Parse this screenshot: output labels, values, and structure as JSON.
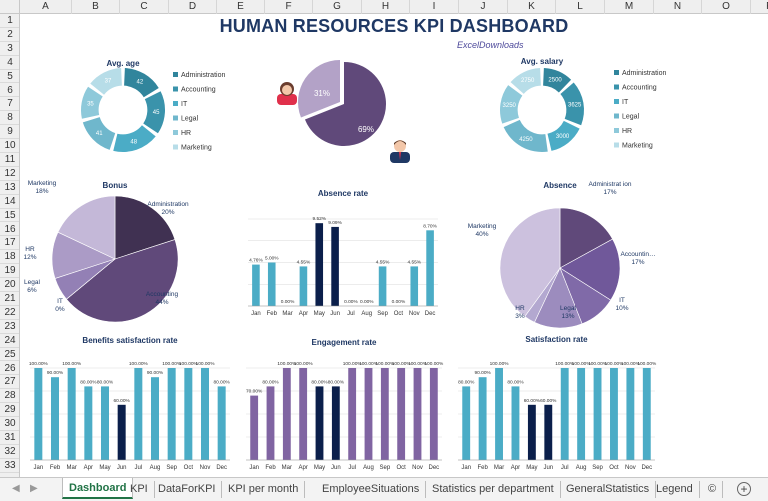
{
  "dashboard": {
    "title": "HUMAN RESOURCES KPI DASHBOARD",
    "subtitle": "ExcelDownloads"
  },
  "columns": [
    "A",
    "B",
    "C",
    "D",
    "E",
    "F",
    "G",
    "H",
    "I",
    "J",
    "K",
    "L",
    "M",
    "N",
    "O",
    "P"
  ],
  "rows": [
    "1",
    "2",
    "3",
    "4",
    "5",
    "6",
    "7",
    "8",
    "9",
    "10",
    "11",
    "12",
    "13",
    "14",
    "15",
    "16",
    "17",
    "18",
    "19",
    "20",
    "21",
    "22",
    "23",
    "24",
    "25",
    "26",
    "27",
    "28",
    "29",
    "30",
    "31",
    "32",
    "33"
  ],
  "tabs": {
    "labels": [
      "Dashboard",
      "KPI",
      "DataForKPI",
      "KPI per month",
      "EmployeeSituations",
      "Statistics per department",
      "GeneralStatistics",
      "Legend",
      "©"
    ],
    "active": "Dashboard",
    "prev": "◀",
    "next": "▶",
    "add": "+"
  },
  "colors": {
    "title": "#1f3864",
    "excel_green": "#217346",
    "teal": "#4bacc6",
    "purple": "#8064a2",
    "navy": "#0b1f4b"
  },
  "chart_data": [
    {
      "id": "avg-age",
      "type": "pie",
      "title": "Avg. age",
      "donut": true,
      "legend": [
        "Administration",
        "Accounting",
        "IT",
        "Legal",
        "HR",
        "Marketing"
      ],
      "values": [
        42,
        45,
        48,
        41,
        35,
        37
      ],
      "colors": [
        "#31859c",
        "#3a93ab",
        "#4bacc6",
        "#6fb7cc",
        "#8ec9da",
        "#b7dde8"
      ]
    },
    {
      "id": "gender",
      "type": "pie",
      "title": "",
      "values": [
        31,
        69
      ],
      "labels": [
        "31%",
        "69%"
      ],
      "colors": [
        "#b3a2c7",
        "#60497a"
      ],
      "icons": [
        "female-avatar-icon",
        "male-avatar-icon"
      ]
    },
    {
      "id": "avg-salary",
      "type": "pie",
      "title": "Avg. salary",
      "donut": true,
      "legend": [
        "Administration",
        "Accounting",
        "IT",
        "Legal",
        "HR",
        "Marketing"
      ],
      "values": [
        2500,
        3625,
        3000,
        4250,
        3250,
        2750
      ],
      "colors": [
        "#31859c",
        "#3a93ab",
        "#4bacc6",
        "#6fb7cc",
        "#8ec9da",
        "#b7dde8"
      ]
    },
    {
      "id": "bonus",
      "type": "pie",
      "title": "Bonus",
      "categories": [
        "Administration",
        "Accounting",
        "IT",
        "Legal",
        "HR",
        "Marketing"
      ],
      "labels": [
        "Administration",
        "Accounting",
        "IT",
        "Legal",
        "HR",
        "Marketing"
      ],
      "percent_labels": [
        "20%",
        "44%",
        "0%",
        "6%",
        "12%",
        "18%"
      ],
      "values": [
        20,
        44,
        0,
        6,
        12,
        18
      ],
      "colors": [
        "#403152",
        "#60497a",
        "#7a5f9e",
        "#9380b5",
        "#ab9bc6",
        "#c4b8d8"
      ]
    },
    {
      "id": "absence-rate",
      "type": "bar",
      "title": "Absence rate",
      "categories": [
        "Jan",
        "Feb",
        "Mar",
        "Apr",
        "May",
        "Jun",
        "Jul",
        "Aug",
        "Sep",
        "Oct",
        "Nov",
        "Dec"
      ],
      "values": [
        4.76,
        5.0,
        0.0,
        4.55,
        9.52,
        9.09,
        0.0,
        0.0,
        4.55,
        0.0,
        4.55,
        8.7
      ],
      "labels": [
        "4.76%",
        "5.00%",
        "0.00%",
        "4.55%",
        "9.52%",
        "9.09%",
        "0.00%",
        "0.00%",
        "4.55%",
        "0.00%",
        "4.55%",
        "8.70%"
      ],
      "highlight": [
        4,
        5
      ],
      "ylim": [
        0,
        10
      ],
      "color": "#4bacc6",
      "highlight_color": "#0b1f4b",
      "grid": true
    },
    {
      "id": "absence",
      "type": "pie",
      "title": "Absence",
      "categories": [
        "Administration",
        "Accounting",
        "IT",
        "Legal",
        "HR",
        "Marketing"
      ],
      "labels": [
        "Administrat ion",
        "Accountin…",
        "IT",
        "Legal",
        "HR",
        "Marketing"
      ],
      "percent_labels": [
        "17%",
        "17%",
        "10%",
        "13%",
        "3%",
        "40%"
      ],
      "values": [
        17,
        17,
        10,
        13,
        3,
        40
      ],
      "colors": [
        "#60497a",
        "#70589a",
        "#806aa8",
        "#9c8cbe",
        "#b3a8d0",
        "#ccc1de"
      ]
    },
    {
      "id": "benefits-satisfaction",
      "type": "bar",
      "title": "Benefits satisfaction rate",
      "categories": [
        "Jan",
        "Feb",
        "Mar",
        "Apr",
        "May",
        "Jun",
        "Jul",
        "Aug",
        "Sep",
        "Oct",
        "Nov",
        "Dec"
      ],
      "values": [
        100,
        90,
        100,
        80,
        80,
        60,
        100,
        90,
        100,
        100,
        100,
        80
      ],
      "labels": [
        "100.00%",
        "90.00%",
        "100.00%",
        "80.00%",
        "80.00%",
        "60.00%",
        "100.00%",
        "90.00%",
        "100.00%",
        "100.00%",
        "100.00%",
        "80.00%"
      ],
      "highlight": [
        5
      ],
      "ylim": [
        0,
        100
      ],
      "color": "#4bacc6",
      "highlight_color": "#0b1f4b",
      "grid": true
    },
    {
      "id": "engagement",
      "type": "bar",
      "title": "Engagement rate",
      "categories": [
        "Jan",
        "Feb",
        "Mar",
        "Apr",
        "May",
        "Jun",
        "Jul",
        "Aug",
        "Sep",
        "Oct",
        "Nov",
        "Dec"
      ],
      "values": [
        70,
        80,
        100,
        100,
        80,
        80,
        100,
        100,
        100,
        100,
        100,
        100
      ],
      "labels": [
        "70.00%",
        "80.00%",
        "100.00%",
        "100.00%",
        "80.00%",
        "80.00%",
        "100.00%",
        "100.00%",
        "100.00%",
        "100.00%",
        "100.00%",
        "100.00%"
      ],
      "highlight": [
        4,
        5
      ],
      "ylim": [
        0,
        100
      ],
      "color": "#8064a2",
      "highlight_color": "#0b1f4b",
      "grid": true
    },
    {
      "id": "satisfaction",
      "type": "bar",
      "title": "Satisfaction rate",
      "categories": [
        "Jan",
        "Feb",
        "Mar",
        "Apr",
        "May",
        "Jun",
        "Jul",
        "Aug",
        "Sep",
        "Oct",
        "Nov",
        "Dec"
      ],
      "values": [
        80,
        90,
        100,
        80,
        60,
        60,
        100,
        100,
        100,
        100,
        100,
        100
      ],
      "labels": [
        "80.00%",
        "90.00%",
        "100.00%",
        "80.00%",
        "60.00%",
        "60.00%",
        "100.00%",
        "100.00%",
        "100.00%",
        "100.00%",
        "100.00%",
        "100.00%"
      ],
      "highlight": [
        4,
        5
      ],
      "ylim": [
        0,
        100
      ],
      "color": "#4bacc6",
      "highlight_color": "#0b1f4b",
      "grid": true
    }
  ]
}
